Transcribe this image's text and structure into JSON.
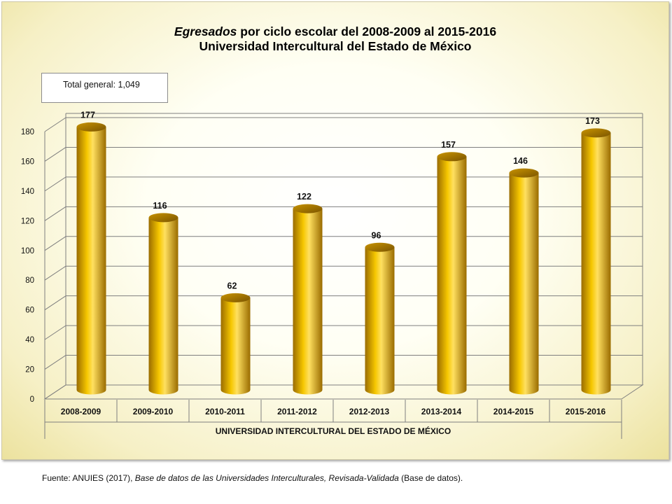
{
  "title": {
    "line1_em": "Egresados",
    "line1_rest": " por ciclo escolar del 2008-2009 al 2015-2016",
    "line2": "Universidad Intercultural del Estado de México"
  },
  "total_label": "Total general: 1,049",
  "source": {
    "prefix": "Fuente: ANUIES (2017),  ",
    "title_italic": "Base de datos de las Universidades  Interculturales, Revisada-Validada",
    "suffix": "  (Base de datos)."
  },
  "colors": {
    "bar_dark": "#9a6c00",
    "bar_mid": "#f6c700",
    "bar_light": "#ffe060",
    "grid": "#7f7f7f",
    "background_edge": "#ece29e"
  },
  "chart_data": {
    "type": "bar",
    "categories": [
      "2008-2009",
      "2009-2010",
      "2010-2011",
      "2011-2012",
      "2012-2013",
      "2013-2014",
      "2014-2015",
      "2015-2016"
    ],
    "values": [
      177,
      116,
      62,
      122,
      96,
      157,
      146,
      173
    ],
    "xlabel": "UNIVERSIDAD INTERCULTURAL DEL ESTADO DE MÉXICO",
    "ylim": [
      0,
      180
    ],
    "yticks": [
      0,
      20,
      40,
      60,
      80,
      100,
      120,
      140,
      160,
      180
    ],
    "grid": true,
    "bar_shape": "cylinder",
    "data_labels": true
  }
}
